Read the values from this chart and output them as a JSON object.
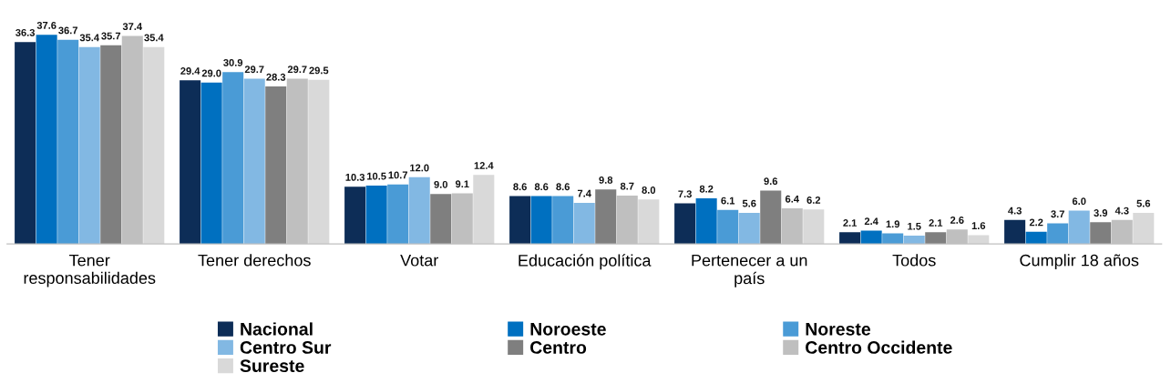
{
  "chart_data": {
    "type": "bar",
    "categories": [
      "Tener\nresponsabilidades",
      "Tener derechos",
      "Votar",
      "Educación política",
      "Pertenecer a un\npaís",
      "Todos",
      "Cumplir 18 años"
    ],
    "series": [
      {
        "name": "Nacional",
        "color": "#0d2d57",
        "values": [
          36.3,
          29.4,
          10.3,
          8.6,
          7.3,
          2.1,
          4.3
        ],
        "value_labels": [
          "36.3",
          "29.4",
          "10.3",
          "8.6",
          "7.3",
          "2.1",
          "4.3"
        ]
      },
      {
        "name": "Noroeste",
        "color": "#0070c0",
        "values": [
          37.6,
          29.0,
          10.5,
          8.6,
          8.2,
          2.4,
          2.2
        ],
        "value_labels": [
          "37.6",
          "29.0",
          "10.5",
          "8.6",
          "8.2",
          "2.4",
          "2.2"
        ]
      },
      {
        "name": "Noreste",
        "color": "#4a9bd6",
        "values": [
          36.7,
          30.9,
          10.7,
          8.6,
          6.1,
          1.9,
          3.7
        ],
        "value_labels": [
          "36.7",
          "30.9",
          "10.7",
          "8.6",
          "6.1",
          "1.9",
          "3.7"
        ]
      },
      {
        "name": "Centro Sur",
        "color": "#82b8e3",
        "values": [
          35.4,
          29.7,
          12.0,
          7.4,
          5.6,
          1.5,
          6.0
        ],
        "value_labels": [
          "35.4",
          "29.7",
          "12.0",
          "7.4",
          "5.6",
          "1.5",
          "6.0"
        ]
      },
      {
        "name": "Centro",
        "color": "#7f7f7f",
        "values": [
          35.7,
          28.3,
          9.0,
          9.8,
          9.6,
          2.1,
          3.9
        ],
        "value_labels": [
          "35.7",
          "28.3",
          "9.0",
          "9.8",
          "9.6",
          "2.1",
          "3.9"
        ]
      },
      {
        "name": "Centro Occidente",
        "color": "#bfbfbf",
        "values": [
          37.4,
          29.7,
          9.1,
          8.7,
          6.4,
          2.6,
          4.3
        ],
        "value_labels": [
          "37.4",
          "29.7",
          "9.1",
          "8.7",
          "6.4",
          "2.6",
          "4.3"
        ]
      },
      {
        "name": "Sureste",
        "color": "#d9d9d9",
        "values": [
          35.4,
          29.5,
          12.4,
          8.0,
          6.2,
          1.6,
          5.6
        ],
        "value_labels": [
          "35.4",
          "29.5",
          "12.4",
          "8.0",
          "6.2",
          "1.6",
          "5.6"
        ]
      }
    ],
    "legend": "bottom",
    "grid": false
  }
}
